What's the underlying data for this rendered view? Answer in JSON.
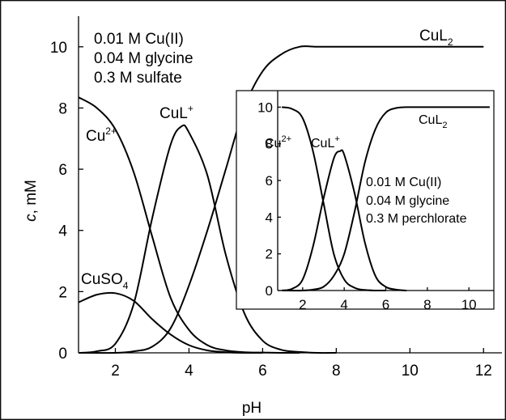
{
  "chart_data": [
    {
      "type": "line",
      "xlabel": "pH",
      "ylabel_italic": "c",
      "ylabel_rest": ", mM",
      "xlim": [
        1,
        12.5
      ],
      "ylim": [
        0,
        11
      ],
      "xticks": [
        2,
        4,
        6,
        8,
        10,
        12
      ],
      "yticks": [
        0,
        2,
        4,
        6,
        8,
        10
      ],
      "conditions": [
        "0.01 M Cu(II)",
        "0.04 M glycine",
        "0.3 M sulfate"
      ],
      "series": [
        {
          "name": "Cu2+",
          "label_main": "Cu",
          "label_sup": "2+",
          "x": [
            1,
            1.5,
            2,
            2.5,
            3,
            3.5,
            4,
            4.5,
            5,
            5.5,
            6,
            6.5,
            7
          ],
          "y": [
            8.35,
            8.0,
            7.3,
            5.9,
            3.8,
            1.8,
            0.75,
            0.25,
            0.08,
            0.02,
            0.01,
            0,
            0
          ]
        },
        {
          "name": "CuSO4",
          "label_main": "CuSO",
          "label_sub": "4",
          "x": [
            1,
            1.5,
            2,
            2.5,
            3,
            3.5,
            4,
            4.5,
            5,
            5.5,
            6
          ],
          "y": [
            1.65,
            1.9,
            1.95,
            1.7,
            1.1,
            0.6,
            0.25,
            0.08,
            0.02,
            0,
            0
          ]
        },
        {
          "name": "CuL+",
          "label_main": "CuL",
          "label_sup": "+",
          "x": [
            1,
            1.5,
            2,
            2.5,
            3,
            3.5,
            3.8,
            4,
            4.5,
            5,
            5.5,
            6,
            6.5,
            7,
            7.5,
            8
          ],
          "y": [
            0,
            0.05,
            0.3,
            1.6,
            4.4,
            6.8,
            7.4,
            7.2,
            5.8,
            3.2,
            1.3,
            0.4,
            0.1,
            0.03,
            0,
            0
          ]
        },
        {
          "name": "CuL2",
          "label_main": "CuL",
          "label_sub": "2",
          "x": [
            1,
            2,
            2.5,
            3,
            3.5,
            4,
            4.5,
            5,
            5.5,
            6,
            6.5,
            7,
            7.5,
            8,
            9,
            10,
            11,
            12
          ],
          "y": [
            0,
            0,
            0.05,
            0.2,
            0.8,
            2.2,
            4.0,
            6.0,
            8.0,
            9.2,
            9.75,
            10.0,
            10.0,
            10.0,
            10.0,
            10.0,
            10.0,
            10.0
          ]
        }
      ]
    },
    {
      "type": "line",
      "xlim": [
        0.8,
        11.2
      ],
      "ylim": [
        0,
        10.9
      ],
      "xticks": [
        2,
        4,
        6,
        8,
        10
      ],
      "yticks": [
        0,
        2,
        4,
        6,
        8,
        10
      ],
      "conditions": [
        "0.01 M Cu(II)",
        "0.04 M glycine",
        "0.3 M perchlorate"
      ],
      "series": [
        {
          "name": "Cu2+",
          "label_main": "Cu",
          "label_sup": "2+",
          "x": [
            1,
            1.5,
            2,
            2.5,
            3,
            3.5,
            4,
            4.5,
            5,
            5.5,
            6
          ],
          "y": [
            10,
            9.9,
            9.4,
            7.6,
            4.8,
            2.0,
            0.6,
            0.15,
            0.03,
            0,
            0
          ]
        },
        {
          "name": "CuL+",
          "label_main": "CuL",
          "label_sup": "+",
          "x": [
            1,
            1.5,
            2,
            2.5,
            3,
            3.5,
            3.8,
            4,
            4.5,
            5,
            5.5,
            6,
            6.5,
            7
          ],
          "y": [
            0,
            0.1,
            0.6,
            2.4,
            5.0,
            7.2,
            7.6,
            7.4,
            5.3,
            2.6,
            0.8,
            0.2,
            0.05,
            0
          ]
        },
        {
          "name": "CuL2",
          "label_main": "CuL",
          "label_sub": "2",
          "x": [
            1,
            2,
            2.5,
            3,
            3.5,
            4,
            4.5,
            5,
            5.5,
            6,
            6.5,
            7,
            7.5,
            8,
            9,
            10,
            11
          ],
          "y": [
            0,
            0,
            0.05,
            0.2,
            0.8,
            2.0,
            4.3,
            7.0,
            8.8,
            9.7,
            9.95,
            10.0,
            10.0,
            10.0,
            10.0,
            10.0,
            10.0
          ]
        }
      ]
    }
  ]
}
